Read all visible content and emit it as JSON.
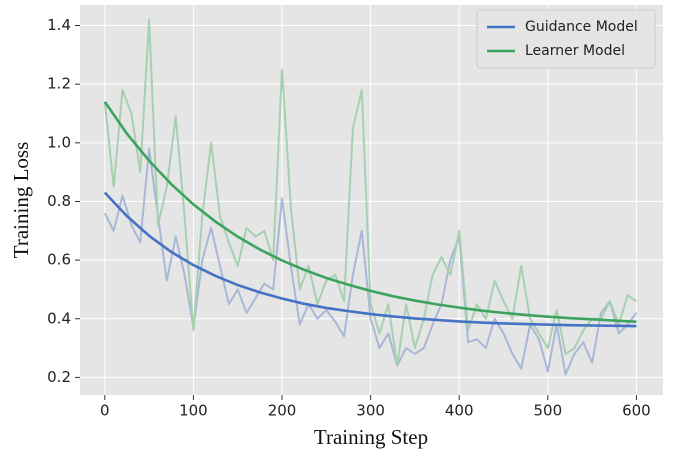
{
  "chart_data": {
    "type": "line",
    "xlabel": "Training Step",
    "ylabel": "Training Loss",
    "xlim": [
      -28,
      630
    ],
    "ylim": [
      0.14,
      1.47
    ],
    "xticks": [
      0,
      100,
      200,
      300,
      400,
      500,
      600
    ],
    "yticks": [
      0.2,
      0.4,
      0.6,
      0.8,
      {
        "value": 1,
        "label": "1.0"
      },
      1.2,
      1.4
    ],
    "grid": true,
    "legend": "upper right",
    "series": [
      {
        "name": "Guidance Model",
        "color": "#4472c4",
        "x": [
          0,
          25,
          50,
          75,
          100,
          125,
          150,
          175,
          200,
          225,
          250,
          275,
          300,
          325,
          350,
          375,
          400,
          425,
          450,
          475,
          500,
          525,
          550,
          575,
          600
        ],
        "values": [
          0.83,
          0.75,
          0.683,
          0.628,
          0.583,
          0.546,
          0.515,
          0.49,
          0.469,
          0.451,
          0.437,
          0.426,
          0.416,
          0.408,
          0.401,
          0.396,
          0.391,
          0.387,
          0.384,
          0.382,
          0.38,
          0.378,
          0.377,
          0.376,
          0.375
        ]
      },
      {
        "name": "Learner Model",
        "color": "#3ca35e",
        "x": [
          0,
          25,
          50,
          75,
          100,
          125,
          150,
          175,
          200,
          225,
          250,
          275,
          300,
          325,
          350,
          375,
          400,
          425,
          450,
          475,
          500,
          525,
          550,
          575,
          600
        ],
        "values": [
          1.14,
          1.031,
          0.939,
          0.859,
          0.79,
          0.731,
          0.68,
          0.636,
          0.599,
          0.567,
          0.539,
          0.516,
          0.495,
          0.477,
          0.462,
          0.449,
          0.438,
          0.428,
          0.42,
          0.413,
          0.407,
          0.402,
          0.398,
          0.394,
          0.39
        ]
      },
      {
        "color": "#a9b7d6",
        "x": [
          0,
          10,
          20,
          30,
          40,
          50,
          60,
          70,
          80,
          90,
          100,
          110,
          120,
          130,
          140,
          150,
          160,
          170,
          180,
          190,
          200,
          210,
          220,
          230,
          240,
          250,
          260,
          270,
          280,
          290,
          300,
          310,
          320,
          330,
          340,
          350,
          360,
          370,
          380,
          390,
          400,
          410,
          420,
          430,
          440,
          450,
          460,
          470,
          480,
          490,
          500,
          510,
          520,
          530,
          540,
          550,
          560,
          570,
          580,
          590,
          600
        ],
        "values": [
          0.76,
          0.7,
          0.82,
          0.72,
          0.66,
          0.98,
          0.75,
          0.53,
          0.68,
          0.55,
          0.37,
          0.6,
          0.71,
          0.58,
          0.45,
          0.5,
          0.42,
          0.47,
          0.52,
          0.5,
          0.81,
          0.58,
          0.38,
          0.45,
          0.4,
          0.43,
          0.39,
          0.34,
          0.55,
          0.7,
          0.4,
          0.3,
          0.35,
          0.24,
          0.3,
          0.28,
          0.3,
          0.38,
          0.45,
          0.6,
          0.68,
          0.32,
          0.33,
          0.3,
          0.4,
          0.35,
          0.28,
          0.23,
          0.38,
          0.33,
          0.22,
          0.38,
          0.21,
          0.28,
          0.32,
          0.25,
          0.42,
          0.46,
          0.35,
          0.38,
          0.42
        ]
      },
      {
        "color": "#a6d0b0",
        "x": [
          0,
          10,
          20,
          30,
          40,
          50,
          60,
          70,
          80,
          90,
          100,
          110,
          120,
          130,
          140,
          150,
          160,
          170,
          180,
          190,
          200,
          210,
          220,
          230,
          240,
          250,
          260,
          270,
          280,
          290,
          300,
          310,
          320,
          330,
          340,
          350,
          360,
          370,
          380,
          390,
          400,
          410,
          420,
          430,
          440,
          450,
          460,
          470,
          480,
          490,
          500,
          510,
          520,
          530,
          540,
          550,
          560,
          570,
          580,
          590,
          600
        ],
        "values": [
          1.14,
          0.85,
          1.18,
          1.1,
          0.9,
          1.42,
          0.72,
          0.85,
          1.09,
          0.75,
          0.36,
          0.75,
          1.0,
          0.75,
          0.66,
          0.58,
          0.71,
          0.68,
          0.7,
          0.6,
          1.25,
          0.78,
          0.5,
          0.58,
          0.45,
          0.53,
          0.55,
          0.46,
          1.05,
          1.18,
          0.45,
          0.35,
          0.45,
          0.24,
          0.45,
          0.3,
          0.4,
          0.55,
          0.61,
          0.55,
          0.7,
          0.36,
          0.45,
          0.4,
          0.53,
          0.46,
          0.4,
          0.58,
          0.4,
          0.35,
          0.3,
          0.43,
          0.28,
          0.3,
          0.36,
          0.4,
          0.4,
          0.46,
          0.38,
          0.48,
          0.46
        ]
      }
    ]
  }
}
